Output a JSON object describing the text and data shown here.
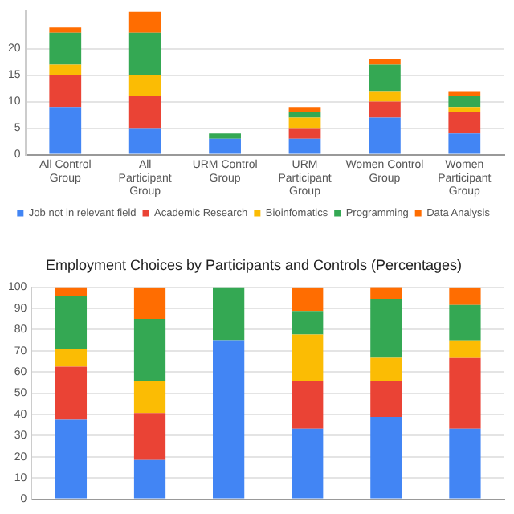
{
  "chart_data": [
    {
      "type": "bar",
      "stacked": true,
      "categories": [
        "All Control Group",
        "All Participant Group",
        "URM Control Group",
        "URM Participant Group",
        "Women Control Group",
        "Women Participant Group"
      ],
      "series": [
        {
          "name": "Job not in relevant field",
          "color": "#4285f4",
          "values": [
            9,
            5,
            3,
            3,
            7,
            4
          ]
        },
        {
          "name": "Academic Research",
          "color": "#ea4335",
          "values": [
            6,
            6,
            0,
            2,
            3,
            4
          ]
        },
        {
          "name": "Bioinfomatics",
          "color": "#fbbc04",
          "values": [
            2,
            4,
            0,
            2,
            2,
            1
          ]
        },
        {
          "name": "Programming",
          "color": "#34a853",
          "values": [
            6,
            8,
            1,
            1,
            5,
            2
          ]
        },
        {
          "name": "Data Analysis",
          "color": "#ff6d01",
          "values": [
            1,
            4,
            0,
            1,
            1,
            1
          ]
        }
      ],
      "ylim": [
        0,
        27
      ],
      "yticks": [
        0,
        5,
        10,
        15,
        20
      ],
      "grid": "y",
      "legend": "bottom"
    },
    {
      "type": "bar",
      "stacked": true,
      "title": "Employment Choices by Participants and Controls (Percentages)",
      "categories": [
        null,
        null,
        null,
        null,
        null,
        null
      ],
      "series": [
        {
          "color": "#4285f4",
          "values": [
            37.5,
            18.5,
            75,
            33.3,
            38.9,
            33.3
          ]
        },
        {
          "color": "#ea4335",
          "values": [
            25,
            22.2,
            0,
            22.2,
            16.7,
            33.3
          ]
        },
        {
          "color": "#fbbc04",
          "values": [
            8.3,
            14.8,
            0,
            22.2,
            11.1,
            8.3
          ]
        },
        {
          "color": "#34a853",
          "values": [
            25,
            29.6,
            25,
            11.1,
            27.8,
            16.7
          ]
        },
        {
          "color": "#ff6d01",
          "values": [
            4.2,
            14.8,
            0,
            11.1,
            5.6,
            8.3
          ]
        }
      ],
      "ylim": [
        0,
        100
      ],
      "yticks": [
        0,
        10,
        20,
        30,
        40,
        50,
        60,
        70,
        80,
        90,
        100
      ],
      "grid": "y",
      "tick_labels": "y"
    }
  ]
}
